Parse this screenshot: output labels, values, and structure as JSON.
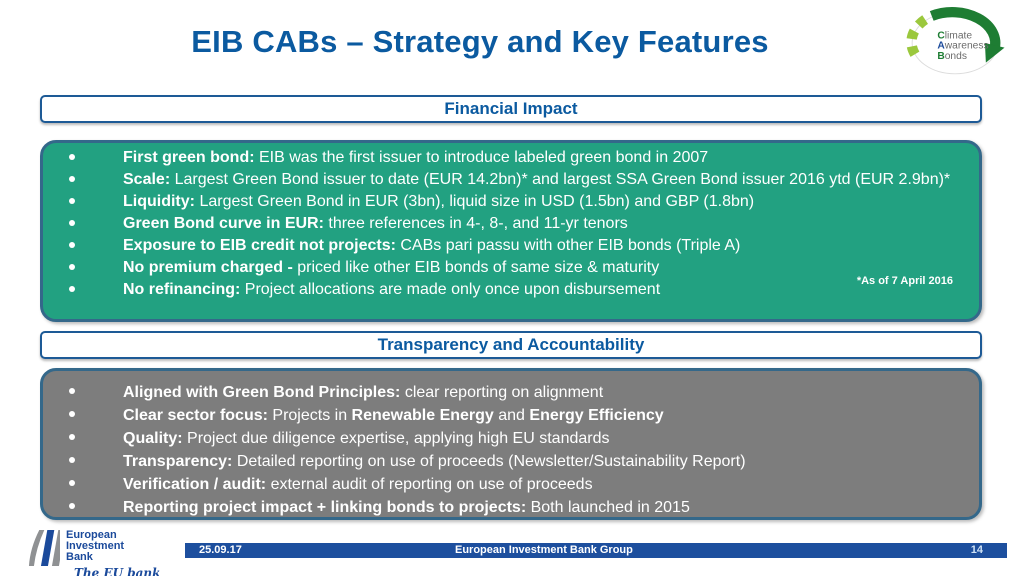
{
  "page": {
    "title": "EIB CABs – Strategy and Key Features"
  },
  "cab_logo": {
    "line1_initial": "C",
    "line1_rest": "limate",
    "line2_initial": "A",
    "line2_rest": "wareness",
    "line3_initial": "B",
    "line3_rest": "onds"
  },
  "sections": [
    {
      "header": "Financial Impact",
      "footnote": "*As of 7 April 2016",
      "bullets": [
        [
          {
            "text": "First green bond: ",
            "bold": true
          },
          {
            "text": "EIB was the first issuer to introduce labeled green bond in 2007"
          }
        ],
        [
          {
            "text": "Scale: ",
            "bold": true
          },
          {
            "text": "Largest Green Bond issuer to date (EUR 14.2bn)* and largest SSA Green Bond issuer 2016 ytd (EUR 2.9bn)*"
          }
        ],
        [
          {
            "text": "Liquidity: ",
            "bold": true
          },
          {
            "text": "Largest Green Bond in EUR (3bn), liquid size in USD (1.5bn) and GBP (1.8bn)"
          }
        ],
        [
          {
            "text": "Green Bond curve in EUR: ",
            "bold": true
          },
          {
            "text": "three references in 4-, 8-, and 11-yr tenors"
          }
        ],
        [
          {
            "text": "Exposure to EIB credit not projects: ",
            "bold": true
          },
          {
            "text": "CABs pari passu with other EIB bonds (Triple A)"
          }
        ],
        [
          {
            "text": "No premium charged - ",
            "bold": true
          },
          {
            "text": "priced like other EIB bonds of same size & maturity"
          }
        ],
        [
          {
            "text": "No refinancing: ",
            "bold": true
          },
          {
            "text": "Project allocations are made only once upon disbursement"
          }
        ]
      ]
    },
    {
      "header": "Transparency and Accountability",
      "bullets": [
        [
          {
            "text": "Aligned with Green Bond Principles: ",
            "bold": true
          },
          {
            "text": "clear reporting on alignment"
          }
        ],
        [
          {
            "text": "Clear sector focus: ",
            "bold": true
          },
          {
            "text": "Projects in "
          },
          {
            "text": "Renewable Energy",
            "bold": true
          },
          {
            "text": " and "
          },
          {
            "text": "Energy Efficiency",
            "bold": true
          }
        ],
        [
          {
            "text": "Quality: ",
            "bold": true
          },
          {
            "text": "Project due diligence expertise, applying high EU standards"
          }
        ],
        [
          {
            "text": "Transparency: ",
            "bold": true
          },
          {
            "text": "Detailed reporting on use of proceeds (Newsletter/Sustainability Report)"
          }
        ],
        [
          {
            "text": "Verification / audit: ",
            "bold": true
          },
          {
            "text": "external audit of reporting on use of proceeds"
          }
        ],
        [
          {
            "text": "Reporting project impact + linking bonds to projects: ",
            "bold": true
          },
          {
            "text": "Both launched in 2015"
          }
        ]
      ]
    }
  ],
  "footer": {
    "logo_line1": "European",
    "logo_line2": "Investment",
    "logo_line3": "Bank",
    "tagline": "The EU bank",
    "date": "25.09.17",
    "group": "European Investment Bank Group",
    "page_number": "14"
  },
  "colors": {
    "brand_blue": "#0b5aa0",
    "panel_green": "#22a181",
    "panel_gray": "#7d7d7d",
    "panel_border_blue": "#34688a",
    "footer_bar_blue": "#1d4f9e",
    "logo_dark_green": "#1e7d33",
    "logo_light_green": "#9bc83d"
  }
}
